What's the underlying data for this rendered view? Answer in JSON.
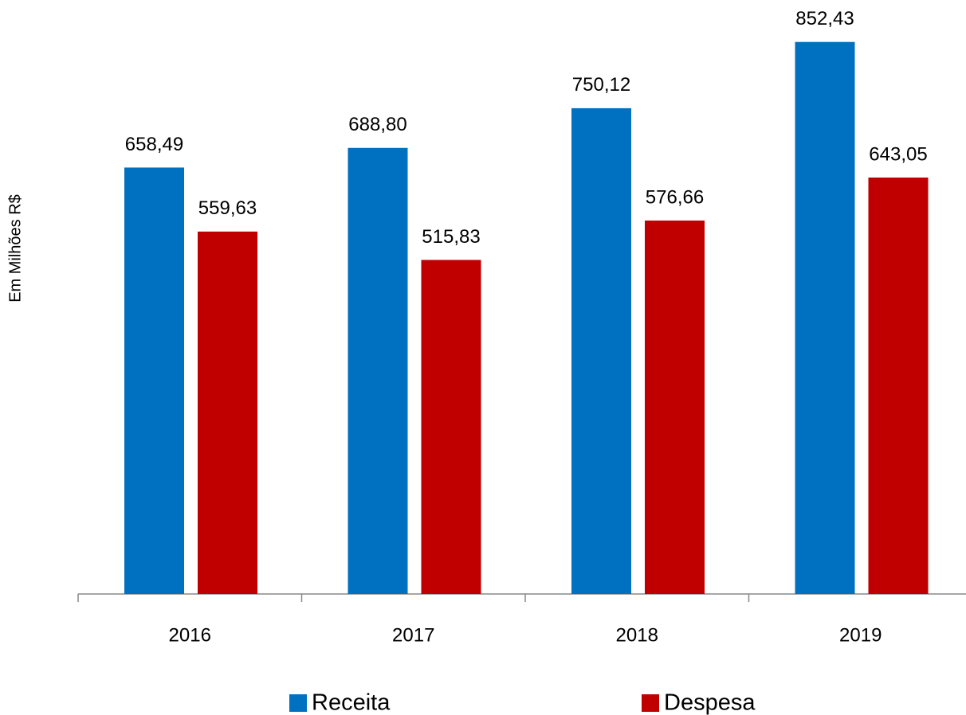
{
  "chart_data": {
    "type": "bar",
    "y_label": "Em Milhões R$",
    "categories": [
      "2016",
      "2017",
      "2018",
      "2019"
    ],
    "series": [
      {
        "name": "Receita",
        "color": "#0070c0",
        "values": [
          658.49,
          688.8,
          750.12,
          852.43
        ],
        "value_labels": [
          "658,49",
          "688,80",
          "750,12",
          "852,43"
        ]
      },
      {
        "name": "Despesa",
        "color": "#c00000",
        "values": [
          559.63,
          515.83,
          576.66,
          643.05
        ],
        "value_labels": [
          "559,63",
          "515,83",
          "576,66",
          "643,05"
        ]
      }
    ],
    "ylim": [
      0,
      900
    ],
    "legend": "bottom"
  }
}
